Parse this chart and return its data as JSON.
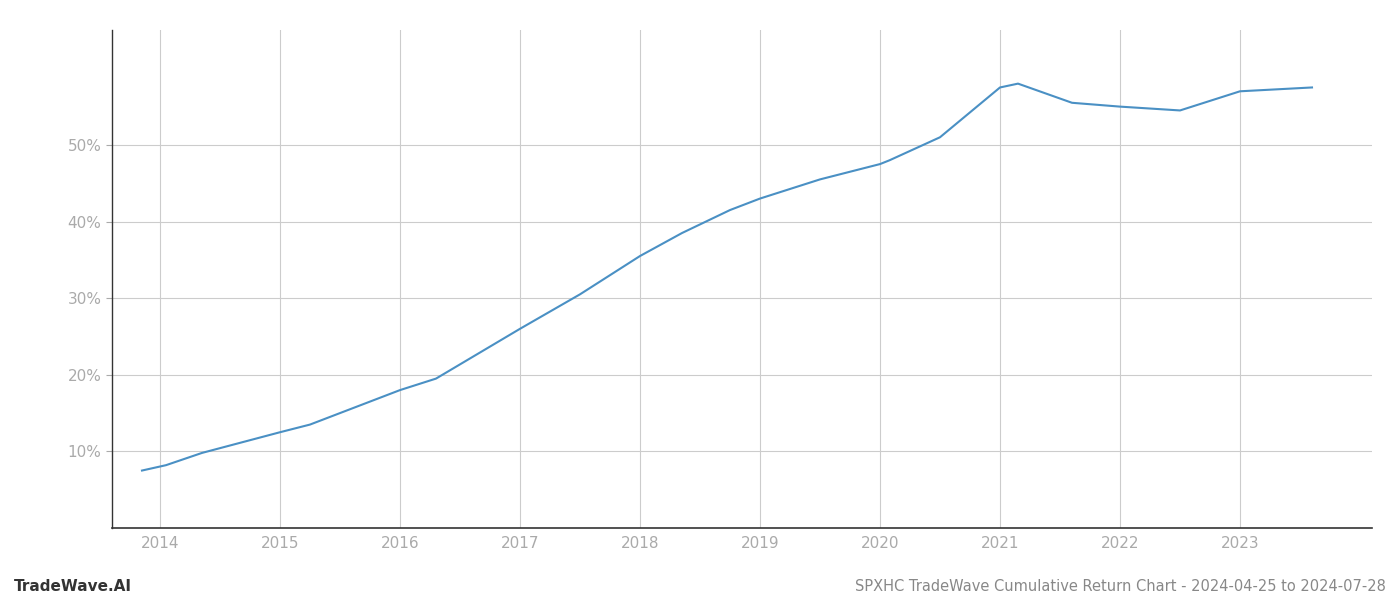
{
  "title": "SPXHC TradeWave Cumulative Return Chart - 2024-04-25 to 2024-07-28",
  "watermark": "TradeWave.AI",
  "line_color": "#4a90c4",
  "background_color": "#ffffff",
  "grid_color": "#cccccc",
  "x_years": [
    2014,
    2015,
    2016,
    2017,
    2018,
    2019,
    2020,
    2021,
    2022,
    2023
  ],
  "data_x": [
    2013.85,
    2014.05,
    2014.35,
    2015.0,
    2015.25,
    2016.0,
    2016.3,
    2017.0,
    2017.5,
    2018.0,
    2018.35,
    2018.75,
    2019.0,
    2019.5,
    2020.0,
    2020.08,
    2020.5,
    2021.0,
    2021.15,
    2021.6,
    2022.0,
    2022.5,
    2023.0,
    2023.6
  ],
  "data_y": [
    7.5,
    8.2,
    9.8,
    12.5,
    13.5,
    18.0,
    19.5,
    26.0,
    30.5,
    35.5,
    38.5,
    41.5,
    43.0,
    45.5,
    47.5,
    48.0,
    51.0,
    57.5,
    58.0,
    55.5,
    55.0,
    54.5,
    57.0,
    57.5
  ],
  "ylim": [
    0,
    65
  ],
  "yticks": [
    10,
    20,
    30,
    40,
    50
  ],
  "xlim": [
    2013.6,
    2024.1
  ],
  "line_width": 1.5,
  "title_fontsize": 10.5,
  "tick_fontsize": 11,
  "watermark_fontsize": 11,
  "axis_label_color": "#aaaaaa",
  "title_color": "#888888",
  "spine_color": "#333333"
}
